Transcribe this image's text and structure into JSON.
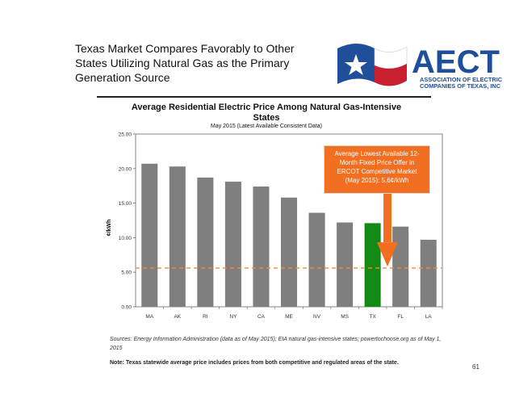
{
  "slide": {
    "title_lines": [
      "Texas Market Compares Favorably to Other",
      "States Utilizing Natural Gas as the Primary",
      "Generation Source"
    ],
    "page_number": "61"
  },
  "logo": {
    "text": "AECT",
    "subtext_lines": [
      "ASSOCIATION OF ELECTRIC",
      "COMPANIES OF TEXAS, INC"
    ],
    "colors": {
      "blue": "#1f4f9a",
      "red": "#c8202f",
      "white": "#ffffff"
    }
  },
  "chart_data": {
    "type": "bar",
    "title": "Average Residential Electric Price Among Natural Gas-Intensive States",
    "subtitle": "May 2015 (Latest Available Consistent Data)",
    "xlabel": "",
    "ylabel": "¢/kWh",
    "ylim": [
      0,
      25
    ],
    "yticks": [
      "0.00",
      "5.00",
      "10.00",
      "15.00",
      "20.00",
      "25.00"
    ],
    "categories": [
      "MA",
      "AK",
      "RI",
      "NY",
      "CA",
      "ME",
      "NV",
      "MS",
      "TX",
      "FL",
      "LA"
    ],
    "values": [
      20.7,
      20.3,
      18.7,
      18.1,
      17.4,
      15.8,
      13.6,
      12.2,
      12.1,
      11.6,
      9.7
    ],
    "highlight_category": "TX",
    "colors": {
      "bar": "#7f7f7f",
      "highlight": "#138a13",
      "reference_line": "#f28a3c",
      "arrow": "#f26f21"
    },
    "reference_value": 5.6,
    "callout_text": "Average Lowest Available 12-Month Fixed Price Offer in ERCOT Competitive Market (May 2015): 5.6¢/kWh",
    "grid": false
  },
  "footer": {
    "sources": "Sources: Energy Information Administration (data as of May 2015); EIA natural gas-intensive states; powertochoose.org as of May 1, 2015",
    "note": "Note: Texas statewide average price includes prices from both competitive and regulated areas of the state."
  }
}
